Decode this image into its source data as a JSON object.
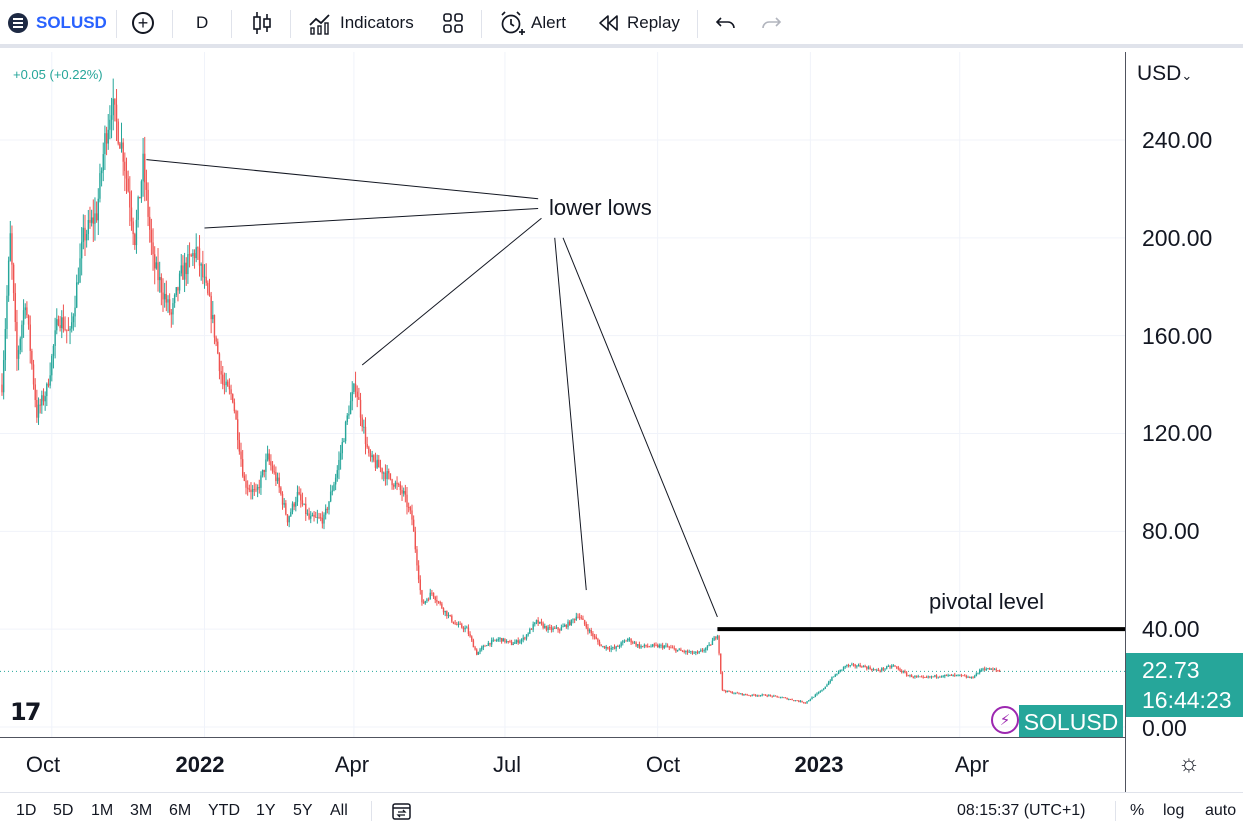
{
  "toolbar": {
    "symbol": "SOLUSD",
    "add_icon": "plus-circle-icon",
    "interval": "D",
    "chart_type_icon": "candles-icon",
    "indicators_label": "Indicators",
    "templates_icon": "grid-icon",
    "alert_label": "Alert",
    "replay_label": "Replay",
    "undo_icon": "undo-icon",
    "redo_icon": "redo-icon"
  },
  "legend": {
    "change": "+0.05 (+0.22%)"
  },
  "colors": {
    "up": "#26a69a",
    "down": "#ef5350",
    "accent": "#2962ff",
    "bolt": "#9c27b0"
  },
  "price_scale": {
    "currency": "USD",
    "labels": [
      "240.00",
      "200.00",
      "160.00",
      "120.00",
      "80.00",
      "40.00",
      "0.00"
    ],
    "last_price": "22.73",
    "countdown": "16:44:23"
  },
  "time_scale": {
    "labels": [
      "Oct",
      "2022",
      "Apr",
      "Jul",
      "Oct",
      "2023",
      "Apr"
    ]
  },
  "bottom_bar": {
    "ranges": [
      "1D",
      "5D",
      "1M",
      "3M",
      "6M",
      "YTD",
      "1Y",
      "5Y",
      "All"
    ],
    "time": "08:15:37 (UTC+1)",
    "percent": "%",
    "log": "log",
    "auto": "auto"
  },
  "chart_data": {
    "type": "candlestick",
    "symbol": "SOLUSD",
    "interval": "D",
    "ylim": [
      0,
      270
    ],
    "y_ticks": [
      0,
      40,
      80,
      120,
      160,
      200,
      240
    ],
    "x_range": [
      "2021-09-01",
      "2023-06-01"
    ],
    "price_path": [
      [
        "2021-09-01",
        140
      ],
      [
        "2021-09-06",
        200
      ],
      [
        "2021-09-10",
        150
      ],
      [
        "2021-09-15",
        175
      ],
      [
        "2021-09-22",
        128
      ],
      [
        "2021-09-28",
        138
      ],
      [
        "2021-10-05",
        168
      ],
      [
        "2021-10-12",
        160
      ],
      [
        "2021-10-20",
        200
      ],
      [
        "2021-10-28",
        210
      ],
      [
        "2021-11-02",
        240
      ],
      [
        "2021-11-06",
        255
      ],
      [
        "2021-11-13",
        235
      ],
      [
        "2021-11-20",
        200
      ],
      [
        "2021-11-25",
        230
      ],
      [
        "2021-12-01",
        190
      ],
      [
        "2021-12-06",
        180
      ],
      [
        "2021-12-12",
        168
      ],
      [
        "2021-12-18",
        185
      ],
      [
        "2021-12-27",
        195
      ],
      [
        "2022-01-05",
        170
      ],
      [
        "2022-01-12",
        140
      ],
      [
        "2022-01-18",
        135
      ],
      [
        "2022-01-25",
        100
      ],
      [
        "2022-02-01",
        95
      ],
      [
        "2022-02-08",
        110
      ],
      [
        "2022-02-14",
        100
      ],
      [
        "2022-02-20",
        85
      ],
      [
        "2022-02-26",
        95
      ],
      [
        "2022-03-05",
        85
      ],
      [
        "2022-03-14",
        85
      ],
      [
        "2022-03-22",
        105
      ],
      [
        "2022-03-29",
        130
      ],
      [
        "2022-04-02",
        140
      ],
      [
        "2022-04-10",
        110
      ],
      [
        "2022-04-18",
        105
      ],
      [
        "2022-04-25",
        100
      ],
      [
        "2022-05-01",
        95
      ],
      [
        "2022-05-06",
        85
      ],
      [
        "2022-05-12",
        50
      ],
      [
        "2022-05-18",
        55
      ],
      [
        "2022-05-25",
        48
      ],
      [
        "2022-06-01",
        42
      ],
      [
        "2022-06-08",
        40
      ],
      [
        "2022-06-14",
        30
      ],
      [
        "2022-06-20",
        34
      ],
      [
        "2022-06-28",
        36
      ],
      [
        "2022-07-05",
        34
      ],
      [
        "2022-07-12",
        36
      ],
      [
        "2022-07-20",
        43
      ],
      [
        "2022-07-27",
        40
      ],
      [
        "2022-08-03",
        40
      ],
      [
        "2022-08-10",
        43
      ],
      [
        "2022-08-14",
        46
      ],
      [
        "2022-08-20",
        40
      ],
      [
        "2022-08-28",
        33
      ],
      [
        "2022-09-05",
        32
      ],
      [
        "2022-09-13",
        36
      ],
      [
        "2022-09-20",
        33
      ],
      [
        "2022-09-28",
        33
      ],
      [
        "2022-10-05",
        33
      ],
      [
        "2022-10-15",
        31
      ],
      [
        "2022-10-25",
        30
      ],
      [
        "2022-11-01",
        33
      ],
      [
        "2022-11-06",
        38
      ],
      [
        "2022-11-09",
        15
      ],
      [
        "2022-11-15",
        14
      ],
      [
        "2022-11-25",
        13
      ],
      [
        "2022-12-05",
        13
      ],
      [
        "2022-12-15",
        12
      ],
      [
        "2022-12-29",
        10
      ],
      [
        "2023-01-08",
        15
      ],
      [
        "2023-01-14",
        20
      ],
      [
        "2023-01-22",
        25
      ],
      [
        "2023-02-01",
        25
      ],
      [
        "2023-02-10",
        23
      ],
      [
        "2023-02-20",
        25
      ],
      [
        "2023-03-01",
        21
      ],
      [
        "2023-03-10",
        20
      ],
      [
        "2023-03-20",
        21
      ],
      [
        "2023-04-01",
        21
      ],
      [
        "2023-04-08",
        20
      ],
      [
        "2023-04-15",
        24
      ],
      [
        "2023-04-25",
        23
      ]
    ],
    "last_close": 22.73,
    "annotations": [
      {
        "type": "text",
        "text": "lower lows"
      },
      {
        "type": "text",
        "text": "pivotal level"
      },
      {
        "type": "trendline",
        "from": [
          "2021-11-27",
          232
        ],
        "to": [
          "2022-07-21",
          216
        ]
      },
      {
        "type": "trendline",
        "from": [
          "2022-01-01",
          204
        ],
        "to": [
          "2022-07-21",
          212
        ]
      },
      {
        "type": "trendline",
        "from": [
          "2022-04-06",
          148
        ],
        "to": [
          "2022-07-23",
          208
        ]
      },
      {
        "type": "trendline",
        "from": [
          "2022-07-31",
          200
        ],
        "to": [
          "2022-08-19",
          56
        ]
      },
      {
        "type": "trendline",
        "from": [
          "2022-08-05",
          200
        ],
        "to": [
          "2022-11-06",
          45
        ]
      },
      {
        "type": "horizontal",
        "level": 40,
        "from": "2022-11-06"
      }
    ]
  }
}
